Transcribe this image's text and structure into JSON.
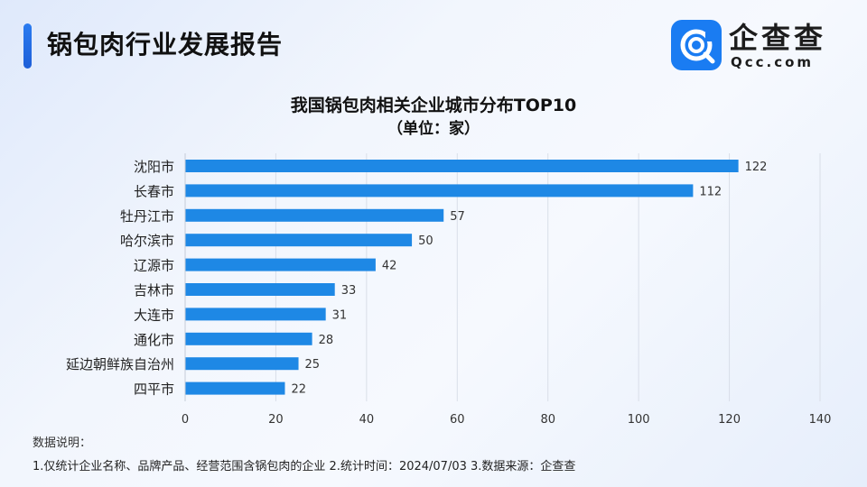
{
  "header": {
    "title": "锅包肉行业发展报告",
    "brand_name": "企查查",
    "brand_sub": "Qcc.com"
  },
  "colors": {
    "accent": "#1f6fe6",
    "bar": "#1e88e5",
    "brand": "#1a7cf2"
  },
  "chart_data": {
    "type": "bar",
    "orientation": "horizontal",
    "title": "我国锅包肉相关企业城市分布TOP10",
    "subtitle": "（单位：家）",
    "categories": [
      "沈阳市",
      "长春市",
      "牡丹江市",
      "哈尔滨市",
      "辽源市",
      "吉林市",
      "大连市",
      "通化市",
      "延边朝鲜族自治州",
      "四平市"
    ],
    "values": [
      122,
      112,
      57,
      50,
      42,
      33,
      31,
      28,
      25,
      22
    ],
    "xlim": [
      0,
      140
    ],
    "xticks": [
      0,
      20,
      40,
      60,
      80,
      100,
      120,
      140
    ],
    "grid": true,
    "data_labels": true
  },
  "notes": {
    "heading": "数据说明：",
    "text": "1.仅统计企业名称、品牌产品、经营范围含锅包肉的企业    2.统计时间：2024/07/03    3.数据来源：企查查"
  }
}
